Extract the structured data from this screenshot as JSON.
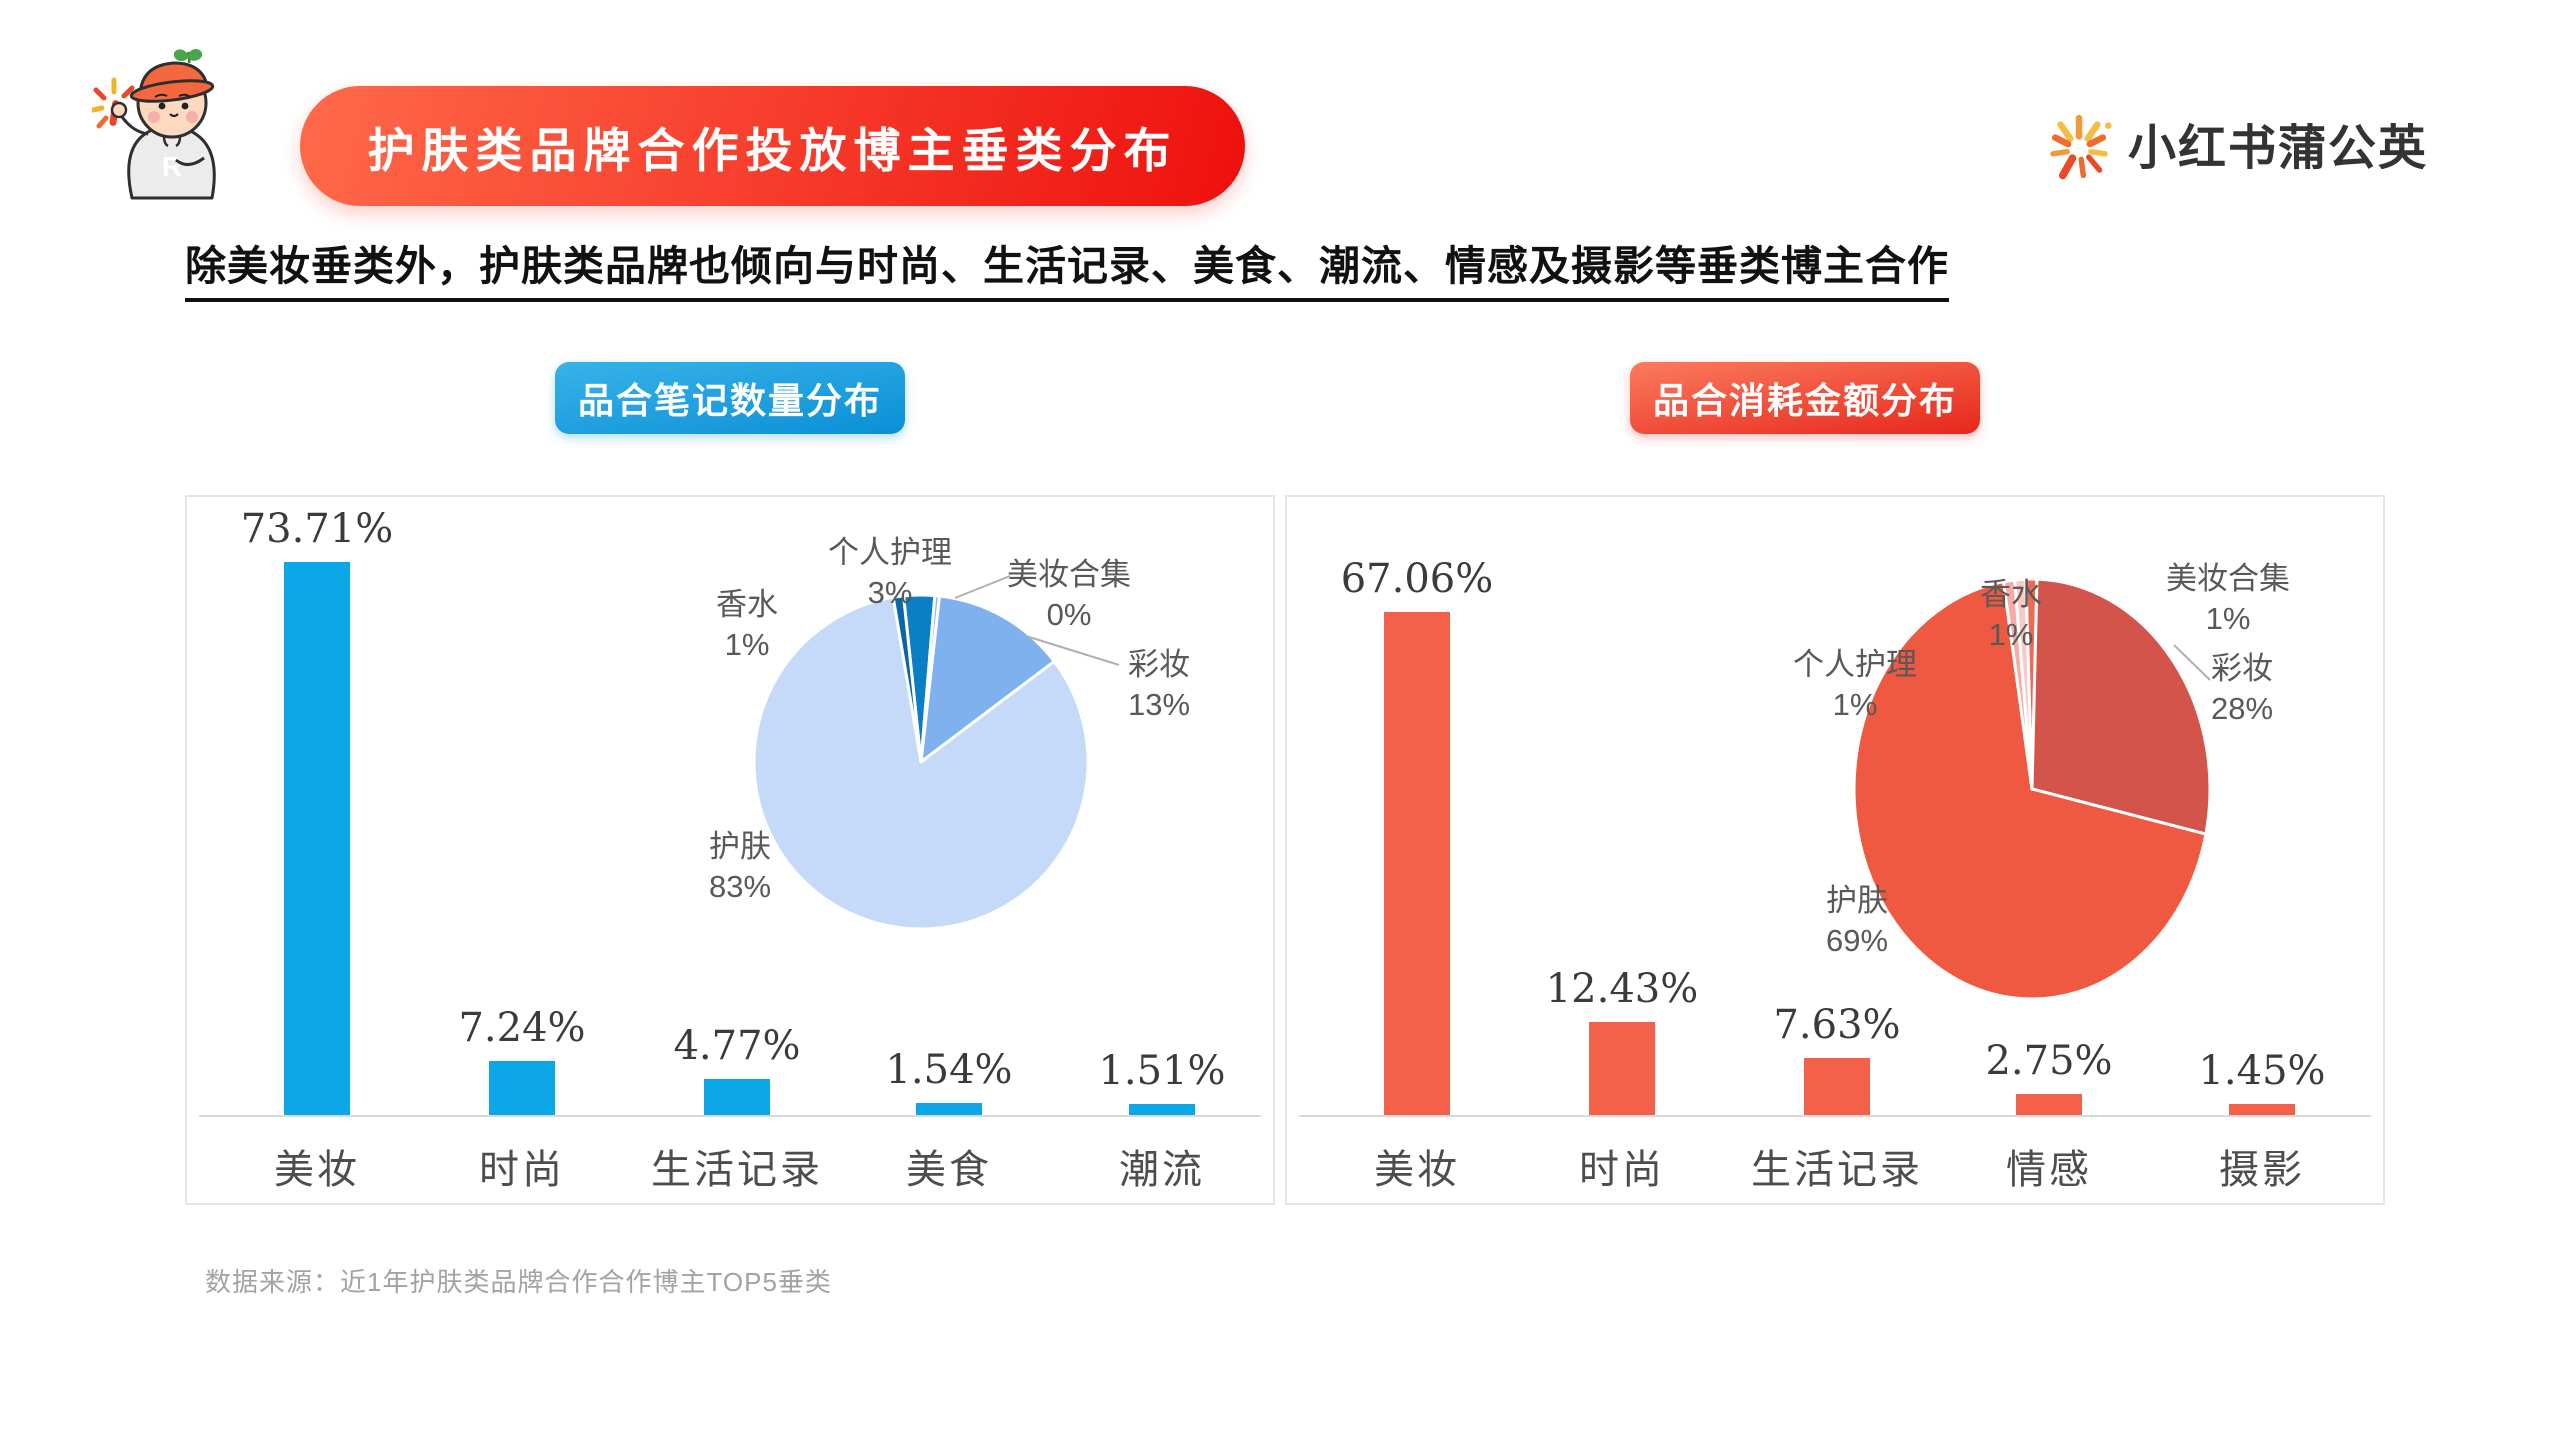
{
  "header": {
    "title": "护肤类品牌合作投放博主垂类分布",
    "title_colors": [
      "#ff6a4a",
      "#ee100d"
    ],
    "logo_text": "小红书蒲公英"
  },
  "subtitle": "除美妆垂类外，护肤类品牌也倾向与时尚、生活记录、美食、潮流、情感及摄影等垂类博主合作",
  "footer": {
    "source": "数据来源：近1年护肤类品牌合作合作博主TOP5垂类"
  },
  "chart_data": [
    {
      "badge": "品合笔记数量分布",
      "badge_colors": [
        "#38b3e8",
        "#0a8fd7"
      ],
      "bar": {
        "type": "bar",
        "title": "品合笔记数量分布",
        "categories": [
          "美妆",
          "时尚",
          "生活记录",
          "美食",
          "潮流"
        ],
        "values": [
          73.71,
          7.24,
          4.77,
          1.54,
          1.51
        ],
        "labels": [
          "73.71%",
          "7.24%",
          "4.77%",
          "1.54%",
          "1.51%"
        ],
        "color": "#0ba7e6",
        "ylim": [
          0,
          80
        ],
        "grid": false
      },
      "pie": {
        "type": "pie",
        "start_angle": -6,
        "slices": [
          {
            "label": "个人护理",
            "pct_label": "3%",
            "value": 3,
            "color": "#0a7fc6"
          },
          {
            "label": "美妆合集",
            "pct_label": "0%",
            "value": 0,
            "color": "#8db9f0"
          },
          {
            "label": "彩妆",
            "pct_label": "13%",
            "value": 13,
            "color": "#80b1ef"
          },
          {
            "label": "护肤",
            "pct_label": "83%",
            "value": 83,
            "color": "#c5d9f8"
          },
          {
            "label": "香水",
            "pct_label": "1%",
            "value": 1,
            "color": "#0a66a6"
          }
        ]
      }
    },
    {
      "badge": "品合消耗金额分布",
      "badge_colors": [
        "#fb7b5e",
        "#e7271a"
      ],
      "bar": {
        "type": "bar",
        "title": "品合消耗金额分布",
        "categories": [
          "美妆",
          "时尚",
          "生活记录",
          "情感",
          "摄影"
        ],
        "values": [
          67.06,
          12.43,
          7.63,
          2.75,
          1.45
        ],
        "labels": [
          "67.06%",
          "12.43%",
          "7.63%",
          "2.75%",
          "1.45%"
        ],
        "color": "#f4614b",
        "ylim": [
          0,
          80
        ],
        "grid": false
      },
      "pie": {
        "type": "pie",
        "start_angle": -2,
        "slices": [
          {
            "label": "美妆合集",
            "pct_label": "1%",
            "value": 1,
            "color": "#ee6a52"
          },
          {
            "label": "彩妆",
            "pct_label": "28%",
            "value": 28,
            "color": "#d2544a"
          },
          {
            "label": "护肤",
            "pct_label": "69%",
            "value": 69,
            "color": "#ef5942"
          },
          {
            "label": "个人护理",
            "pct_label": "1%",
            "value": 1,
            "color": "#f6aba6"
          },
          {
            "label": "香水",
            "pct_label": "1%",
            "value": 1,
            "color": "#f9c9c6"
          }
        ]
      }
    }
  ]
}
